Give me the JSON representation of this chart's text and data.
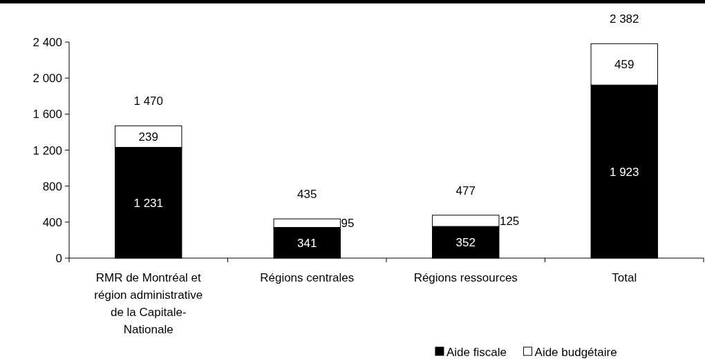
{
  "chart_data": {
    "type": "bar",
    "stacked": true,
    "categories": [
      "RMR de Montréal et région administrative de la Capitale-Nationale",
      "Régions centrales",
      "Régions ressources",
      "Total"
    ],
    "series": [
      {
        "name": "Aide fiscale",
        "color": "#000000",
        "values": [
          1231,
          341,
          352,
          1923
        ],
        "value_labels": [
          "1 231",
          "341",
          "352",
          "1 923"
        ]
      },
      {
        "name": "Aide budgétaire",
        "color": "#ffffff",
        "values": [
          239,
          95,
          125,
          459
        ],
        "value_labels": [
          "239",
          "95",
          "125",
          "459"
        ]
      }
    ],
    "totals": [
      "1 470",
      "435",
      "477",
      "2 382"
    ],
    "ylim": [
      0,
      2400
    ],
    "yticks": [
      0,
      {
        "value": 400,
        "label": "400"
      },
      {
        "value": 800,
        "label": "800"
      },
      {
        "value": 1200,
        "label": "1 200"
      },
      {
        "value": 1600,
        "label": "1 600"
      },
      {
        "value": 2000,
        "label": "2 000"
      },
      {
        "value": 2400,
        "label": "2 400"
      }
    ],
    "grid": false,
    "legend": "bottom"
  }
}
